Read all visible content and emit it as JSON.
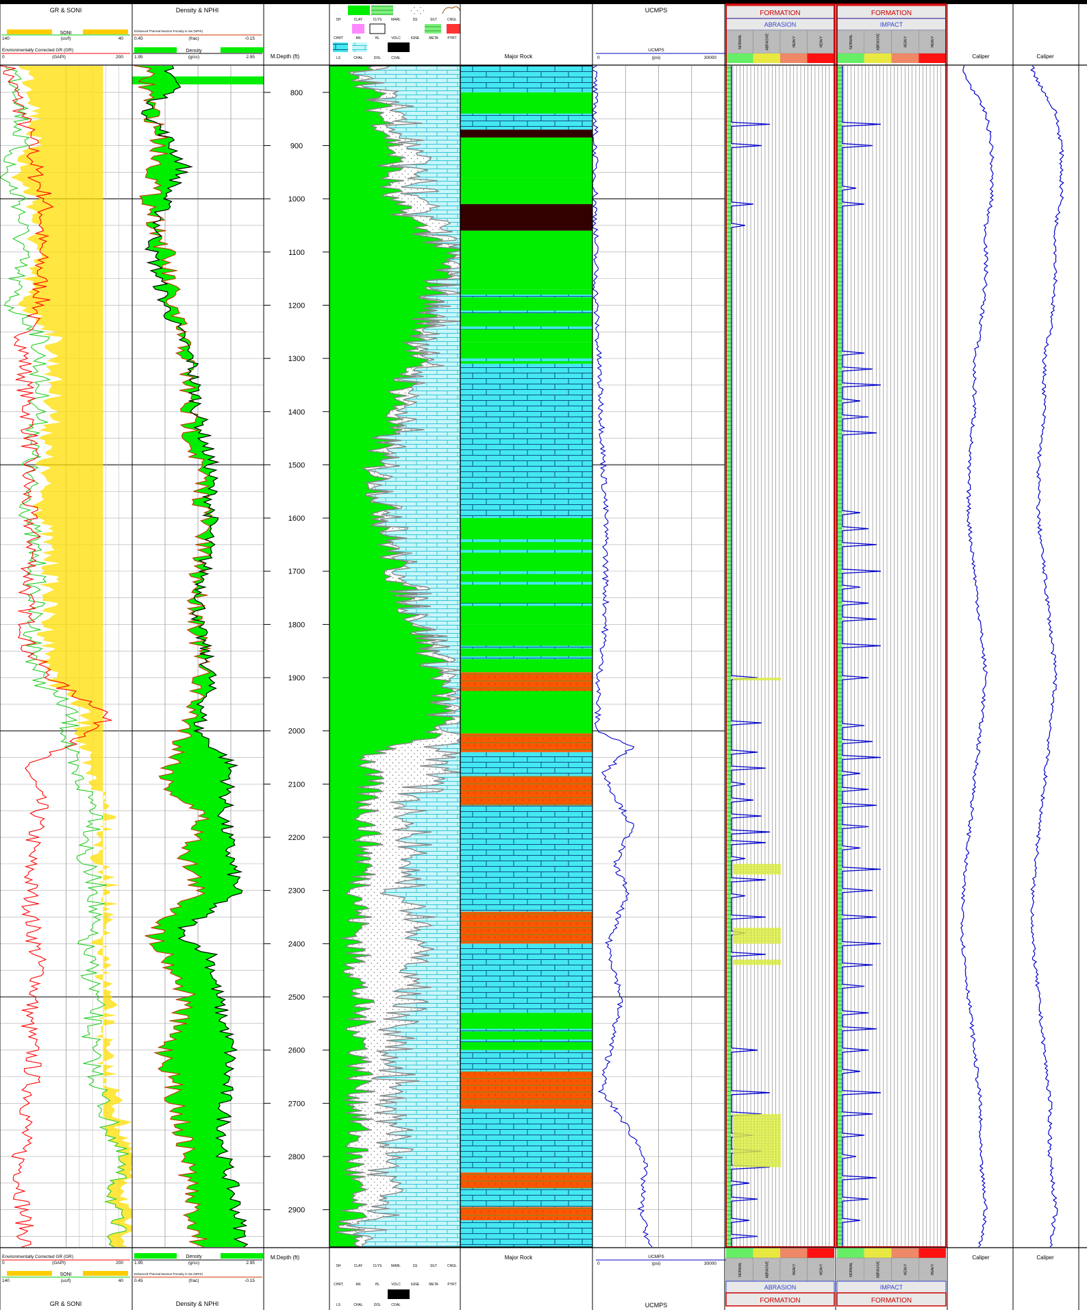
{
  "colors": {
    "gr": "#ff0000",
    "soni": "#00cc00",
    "density": "#000000",
    "nphi": "#cc3300",
    "fill_green": "#00ee00",
    "fill_yellow": "#ffdd00",
    "fill_cyan": "#44e8f0",
    "coal": "#330000",
    "sand_red": "#ff5500",
    "curve_blue": "#0000cc",
    "frame_red": "#cc0000",
    "grid": "#888888",
    "lith_gray": "#888888"
  },
  "track1": {
    "title": "GR & SONI",
    "soni_label": "SONI",
    "soni_unit": "(us/f)",
    "soni_min": "140",
    "soni_max": "40",
    "gr_label": "Environmentally Corrected GR (GR)",
    "gr_unit": "(GAPI)",
    "gr_min": "0",
    "gr_max": "200"
  },
  "track2": {
    "title": "Density & NPHI",
    "nphi_label": "Enhanced Thermal Neutron Porosity in Sw (NPHI)",
    "nphi_unit": "(frac)",
    "nphi_min": "0.45",
    "nphi_max": "-0.15",
    "den_label": "Density",
    "den_unit": "(g/cc)",
    "den_min": "1.95",
    "den_max": "2.95"
  },
  "track3": {
    "title": "M.Depth (ft)"
  },
  "track4": {
    "legend_row1": [
      "SH",
      "CLAY",
      "CLYS",
      "MARL",
      "SS",
      "SILT",
      "CNGL"
    ],
    "legend_row2": [
      "CHRT",
      "AN",
      "HL",
      "VOLC",
      "IGNE",
      "META",
      "PYRT"
    ],
    "legend_row3": [
      "LS",
      "CHAL",
      "DOL",
      "COAL"
    ]
  },
  "track5": {
    "title": "Major Rock"
  },
  "track6": {
    "title": "UCMPS",
    "curve_label": "UCMPS",
    "unit": "(psi)",
    "min": "0",
    "max": "30000"
  },
  "track7": {
    "formation": "FORMATION",
    "sub": "ABRASION",
    "cols": [
      "NORMAL",
      "ABRASIVE",
      "HEAVY",
      "HEAVY"
    ]
  },
  "track8": {
    "formation": "FORMATION",
    "sub": "IMPACT",
    "cols": [
      "NORMAL",
      "ABRASIVE",
      "HEAVY",
      "HEAVY"
    ]
  },
  "track9": {
    "title": "Caliper"
  },
  "track10": {
    "title": "Caliper"
  },
  "chart_data": {
    "type": "line",
    "depth_range_ft": [
      750,
      2970
    ],
    "depth_ticks": [
      800,
      900,
      1000,
      1100,
      1200,
      1300,
      1400,
      1500,
      1600,
      1700,
      1800,
      1900,
      2000,
      2100,
      2200,
      2300,
      2400,
      2500,
      2600,
      2700,
      2800,
      2900
    ],
    "gr_keypoints": [
      [
        760,
        12
      ],
      [
        820,
        28
      ],
      [
        900,
        48
      ],
      [
        960,
        55
      ],
      [
        1000,
        70
      ],
      [
        1080,
        60
      ],
      [
        1200,
        62
      ],
      [
        1250,
        35
      ],
      [
        1350,
        38
      ],
      [
        1450,
        46
      ],
      [
        1550,
        40
      ],
      [
        1650,
        50
      ],
      [
        1750,
        40
      ],
      [
        1850,
        42
      ],
      [
        1920,
        95
      ],
      [
        1960,
        160
      ],
      [
        2000,
        150
      ],
      [
        2060,
        40
      ],
      [
        2140,
        60
      ],
      [
        2240,
        45
      ],
      [
        2360,
        48
      ],
      [
        2460,
        60
      ],
      [
        2540,
        42
      ],
      [
        2620,
        50
      ],
      [
        2700,
        45
      ],
      [
        2800,
        30
      ],
      [
        2900,
        35
      ],
      [
        2970,
        40
      ]
    ],
    "soni_keypoints": [
      [
        760,
        130
      ],
      [
        820,
        122
      ],
      [
        900,
        126
      ],
      [
        960,
        138
      ],
      [
        1000,
        124
      ],
      [
        1100,
        124
      ],
      [
        1200,
        132
      ],
      [
        1250,
        110
      ],
      [
        1300,
        110
      ],
      [
        1400,
        110
      ],
      [
        1500,
        118
      ],
      [
        1600,
        118
      ],
      [
        1700,
        112
      ],
      [
        1800,
        115
      ],
      [
        1900,
        112
      ],
      [
        1960,
        88
      ],
      [
        2000,
        88
      ],
      [
        2060,
        88
      ],
      [
        2160,
        64
      ],
      [
        2240,
        78
      ],
      [
        2300,
        65
      ],
      [
        2400,
        76
      ],
      [
        2500,
        68
      ],
      [
        2600,
        72
      ],
      [
        2720,
        60
      ],
      [
        2800,
        50
      ],
      [
        2900,
        55
      ],
      [
        2970,
        50
      ]
    ],
    "density_keypoints": [
      [
        760,
        2.25
      ],
      [
        790,
        2.3
      ],
      [
        830,
        2.05
      ],
      [
        880,
        2.2
      ],
      [
        940,
        2.35
      ],
      [
        1000,
        2.2
      ],
      [
        1100,
        2.1
      ],
      [
        1200,
        2.2
      ],
      [
        1300,
        2.4
      ],
      [
        1400,
        2.45
      ],
      [
        1500,
        2.55
      ],
      [
        1600,
        2.55
      ],
      [
        1700,
        2.5
      ],
      [
        1800,
        2.45
      ],
      [
        1900,
        2.55
      ],
      [
        2000,
        2.45
      ],
      [
        2060,
        2.7
      ],
      [
        2160,
        2.65
      ],
      [
        2240,
        2.7
      ],
      [
        2300,
        2.75
      ],
      [
        2380,
        2.3
      ],
      [
        2420,
        2.55
      ],
      [
        2500,
        2.6
      ],
      [
        2600,
        2.7
      ],
      [
        2700,
        2.65
      ],
      [
        2800,
        2.65
      ],
      [
        2900,
        2.75
      ],
      [
        2970,
        2.8
      ]
    ],
    "nphi_keypoints": [
      [
        760,
        0.4
      ],
      [
        900,
        0.32
      ],
      [
        1000,
        0.37
      ],
      [
        1100,
        0.3
      ],
      [
        1200,
        0.27
      ],
      [
        1300,
        0.2
      ],
      [
        1400,
        0.2
      ],
      [
        1500,
        0.15
      ],
      [
        1600,
        0.12
      ],
      [
        1700,
        0.15
      ],
      [
        1800,
        0.15
      ],
      [
        1900,
        0.14
      ],
      [
        2000,
        0.2
      ],
      [
        2100,
        0.3
      ],
      [
        2160,
        0.13
      ],
      [
        2240,
        0.2
      ],
      [
        2300,
        0.15
      ],
      [
        2380,
        0.35
      ],
      [
        2500,
        0.2
      ],
      [
        2600,
        0.3
      ],
      [
        2700,
        0.25
      ],
      [
        2800,
        0.2
      ],
      [
        2900,
        0.18
      ],
      [
        2970,
        0.14
      ]
    ],
    "ucmps_keypoints": [
      [
        760,
        500
      ],
      [
        1000,
        600
      ],
      [
        1200,
        800
      ],
      [
        1400,
        2000
      ],
      [
        1600,
        3000
      ],
      [
        1800,
        3000
      ],
      [
        1900,
        1500
      ],
      [
        2000,
        1000
      ],
      [
        2030,
        9000
      ],
      [
        2080,
        2500
      ],
      [
        2120,
        5000
      ],
      [
        2180,
        9000
      ],
      [
        2250,
        5000
      ],
      [
        2300,
        8000
      ],
      [
        2400,
        3500
      ],
      [
        2500,
        6500
      ],
      [
        2600,
        4000
      ],
      [
        2680,
        2000
      ],
      [
        2720,
        6000
      ],
      [
        2800,
        12000
      ],
      [
        2900,
        11000
      ],
      [
        2970,
        13000
      ]
    ],
    "caliper_keypoints": [
      [
        760,
        10
      ],
      [
        800,
        12
      ],
      [
        840,
        14
      ],
      [
        900,
        15
      ],
      [
        1000,
        15
      ],
      [
        1050,
        14
      ],
      [
        1150,
        14
      ],
      [
        1250,
        13
      ],
      [
        1300,
        12
      ],
      [
        1400,
        12
      ],
      [
        1500,
        11
      ],
      [
        1600,
        11
      ],
      [
        1700,
        12
      ],
      [
        1800,
        13
      ],
      [
        1900,
        14
      ],
      [
        2000,
        13
      ],
      [
        2100,
        12
      ],
      [
        2200,
        11
      ],
      [
        2300,
        10
      ],
      [
        2400,
        10
      ],
      [
        2500,
        11
      ],
      [
        2600,
        12
      ],
      [
        2700,
        13
      ],
      [
        2800,
        13
      ],
      [
        2900,
        14
      ],
      [
        2970,
        13
      ]
    ],
    "major_rock": [
      {
        "top": 750,
        "base": 800,
        "rock": "LS"
      },
      {
        "top": 800,
        "base": 840,
        "rock": "SH"
      },
      {
        "top": 840,
        "base": 870,
        "rock": "LS"
      },
      {
        "top": 870,
        "base": 885,
        "rock": "COAL"
      },
      {
        "top": 885,
        "base": 960,
        "rock": "SH"
      },
      {
        "top": 960,
        "base": 1010,
        "rock": "SH"
      },
      {
        "top": 1010,
        "base": 1060,
        "rock": "COAL"
      },
      {
        "top": 1060,
        "base": 1170,
        "rock": "SH"
      },
      {
        "top": 1170,
        "base": 1270,
        "rock": "SH"
      },
      {
        "top": 1270,
        "base": 1310,
        "rock": "SH"
      },
      {
        "top": 1310,
        "base": 1600,
        "rock": "LS"
      },
      {
        "top": 1600,
        "base": 1700,
        "rock": "SH"
      },
      {
        "top": 1700,
        "base": 1800,
        "rock": "SH"
      },
      {
        "top": 1800,
        "base": 1890,
        "rock": "SH"
      },
      {
        "top": 1890,
        "base": 1925,
        "rock": "SS"
      },
      {
        "top": 1925,
        "base": 2005,
        "rock": "SH"
      },
      {
        "top": 2005,
        "base": 2040,
        "rock": "SS"
      },
      {
        "top": 2040,
        "base": 2085,
        "rock": "LS"
      },
      {
        "top": 2085,
        "base": 2140,
        "rock": "SS"
      },
      {
        "top": 2140,
        "base": 2340,
        "rock": "LS"
      },
      {
        "top": 2340,
        "base": 2400,
        "rock": "SS"
      },
      {
        "top": 2400,
        "base": 2530,
        "rock": "LS"
      },
      {
        "top": 2530,
        "base": 2600,
        "rock": "SH"
      },
      {
        "top": 2600,
        "base": 2640,
        "rock": "LS"
      },
      {
        "top": 2640,
        "base": 2710,
        "rock": "SS"
      },
      {
        "top": 2710,
        "base": 2830,
        "rock": "LS"
      },
      {
        "top": 2830,
        "base": 2860,
        "rock": "SS"
      },
      {
        "top": 2860,
        "base": 2895,
        "rock": "LS"
      },
      {
        "top": 2895,
        "base": 2920,
        "rock": "SS"
      },
      {
        "top": 2920,
        "base": 2970,
        "rock": "LS"
      }
    ],
    "abrasion_spikes_ft": [
      860,
      900,
      1010,
      1050,
      1900,
      1985,
      2040,
      2070,
      2100,
      2130,
      2160,
      2190,
      2210,
      2240,
      2280,
      2310,
      2350,
      2380,
      2420,
      2600,
      2680,
      2720,
      2760,
      2790,
      2820,
      2850,
      2880,
      2920,
      2950
    ],
    "impact_spikes_ft": [
      860,
      900,
      980,
      1010,
      1290,
      1320,
      1350,
      1380,
      1410,
      1440,
      1590,
      1620,
      1650,
      1700,
      1730,
      1760,
      1790,
      1840,
      1900,
      1990,
      2020,
      2050,
      2080,
      2110,
      2140,
      2180,
      2220,
      2260,
      2300,
      2350,
      2400,
      2440,
      2480,
      2530,
      2560,
      2600,
      2640,
      2680,
      2720,
      2760,
      2800,
      2840,
      2880,
      2920
    ]
  }
}
